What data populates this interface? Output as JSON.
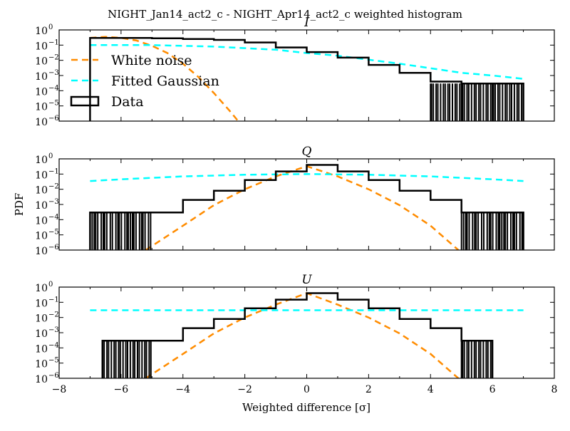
{
  "figure": {
    "title": "NIGHT_Jan14_act2_c - NIGHT_Apr14_act2_c weighted histogram",
    "xlabel": "Weighted difference [σ]",
    "ylabel": "PDF"
  },
  "legend": {
    "location": "upper-left of top panel",
    "entries": [
      {
        "label": "White noise",
        "color": "#ff8c00",
        "style": "dashed"
      },
      {
        "label": "Fitted Gaussian",
        "color": "#00ffff",
        "style": "dashed"
      },
      {
        "label": "Data",
        "color": "#000000",
        "style": "step"
      }
    ]
  },
  "colors": {
    "data": "#000000",
    "white_noise": "#ff8c00",
    "fitted_gaussian": "#00ffff"
  },
  "chart_data": [
    {
      "type": "line",
      "title": "I",
      "xlim": [
        -8,
        8
      ],
      "ylim": [
        1e-06,
        1
      ],
      "yscale": "log",
      "xticks": [
        -8,
        -6,
        -4,
        -2,
        0,
        2,
        4,
        6,
        8
      ],
      "yticks": [
        {
          "base": "10",
          "exp": "0"
        },
        {
          "base": "10",
          "exp": "-1"
        },
        {
          "base": "10",
          "exp": "-2"
        },
        {
          "base": "10",
          "exp": "-3"
        },
        {
          "base": "10",
          "exp": "-4"
        },
        {
          "base": "10",
          "exp": "-5"
        },
        {
          "base": "10",
          "exp": "-6"
        }
      ],
      "series": [
        {
          "name": "White noise",
          "x": [
            -7,
            -6.5,
            -6,
            -5.5,
            -5,
            -4.5,
            -4,
            -3.5,
            -3,
            -2.5,
            -2
          ],
          "y": [
            0.3,
            0.35,
            0.3,
            0.2,
            0.09,
            0.03,
            0.006,
            0.0008,
            7e-05,
            5e-06,
            3e-07
          ]
        },
        {
          "name": "Fitted Gaussian",
          "x": [
            -7,
            -5,
            -3,
            -1,
            0,
            1,
            2,
            3,
            4,
            5,
            6,
            7
          ],
          "y": [
            0.1,
            0.1,
            0.08,
            0.05,
            0.03,
            0.02,
            0.011,
            0.006,
            0.003,
            0.0015,
            0.001,
            0.0006
          ]
        },
        {
          "name": "Data",
          "x": [
            -7,
            -6,
            -5,
            -4,
            -3,
            -2,
            -1,
            0,
            1,
            2,
            3,
            4,
            5,
            6,
            7
          ],
          "y": [
            0.3,
            0.3,
            0.28,
            0.25,
            0.22,
            0.15,
            0.07,
            0.035,
            0.015,
            0.005,
            0.0015,
            0.0004,
            0.0003,
            0.0003,
            0.0003
          ]
        }
      ]
    },
    {
      "type": "line",
      "title": "Q",
      "xlim": [
        -8,
        8
      ],
      "ylim": [
        1e-06,
        1
      ],
      "yscale": "log",
      "xticks": [
        -8,
        -6,
        -4,
        -2,
        0,
        2,
        4,
        6,
        8
      ],
      "yticks": [
        {
          "base": "10",
          "exp": "0"
        },
        {
          "base": "10",
          "exp": "-1"
        },
        {
          "base": "10",
          "exp": "-2"
        },
        {
          "base": "10",
          "exp": "-3"
        },
        {
          "base": "10",
          "exp": "-4"
        },
        {
          "base": "10",
          "exp": "-5"
        },
        {
          "base": "10",
          "exp": "-6"
        }
      ],
      "series": [
        {
          "name": "White noise",
          "x": [
            -5.2,
            -4,
            -3,
            -2,
            -1,
            0,
            1,
            2,
            3,
            4,
            4.9
          ],
          "y": [
            1e-06,
            4e-05,
            0.0009,
            0.01,
            0.07,
            0.33,
            0.07,
            0.01,
            0.0009,
            4e-05,
            1e-06
          ]
        },
        {
          "name": "Fitted Gaussian",
          "x": [
            -7,
            -6,
            -4,
            -2,
            0,
            2,
            4,
            6,
            7
          ],
          "y": [
            0.035,
            0.045,
            0.07,
            0.09,
            0.1,
            0.09,
            0.07,
            0.045,
            0.035
          ]
        },
        {
          "name": "Data",
          "x": [
            -7,
            -5,
            -4,
            -3,
            -2,
            -1,
            0,
            1,
            2,
            3,
            4,
            5,
            7
          ],
          "y": [
            0.0003,
            0.0003,
            0.002,
            0.008,
            0.04,
            0.15,
            0.4,
            0.15,
            0.04,
            0.008,
            0.002,
            0.0003,
            0.0003
          ]
        }
      ]
    },
    {
      "type": "line",
      "title": "U",
      "xlim": [
        -8,
        8
      ],
      "ylim": [
        1e-06,
        1
      ],
      "yscale": "log",
      "xticks": [
        -8,
        -6,
        -4,
        -2,
        0,
        2,
        4,
        6,
        8
      ],
      "yticks": [
        {
          "base": "10",
          "exp": "0"
        },
        {
          "base": "10",
          "exp": "-1"
        },
        {
          "base": "10",
          "exp": "-2"
        },
        {
          "base": "10",
          "exp": "-3"
        },
        {
          "base": "10",
          "exp": "-4"
        },
        {
          "base": "10",
          "exp": "-5"
        },
        {
          "base": "10",
          "exp": "-6"
        }
      ],
      "series": [
        {
          "name": "White noise",
          "x": [
            -5.2,
            -4,
            -3,
            -2,
            -1,
            0,
            1,
            2,
            3,
            4,
            4.9
          ],
          "y": [
            1e-06,
            4e-05,
            0.0009,
            0.01,
            0.07,
            0.4,
            0.07,
            0.01,
            0.0009,
            4e-05,
            1e-06
          ]
        },
        {
          "name": "Fitted Gaussian",
          "x": [
            -7,
            7
          ],
          "y": [
            0.03,
            0.03
          ]
        },
        {
          "name": "Data",
          "x": [
            -6.6,
            -5,
            -4,
            -3,
            -2,
            -1,
            0,
            1,
            2,
            3,
            4,
            5,
            6
          ],
          "y": [
            0.0003,
            0.0003,
            0.002,
            0.008,
            0.04,
            0.15,
            0.4,
            0.15,
            0.04,
            0.008,
            0.002,
            0.0003,
            0.0003
          ]
        }
      ]
    }
  ]
}
